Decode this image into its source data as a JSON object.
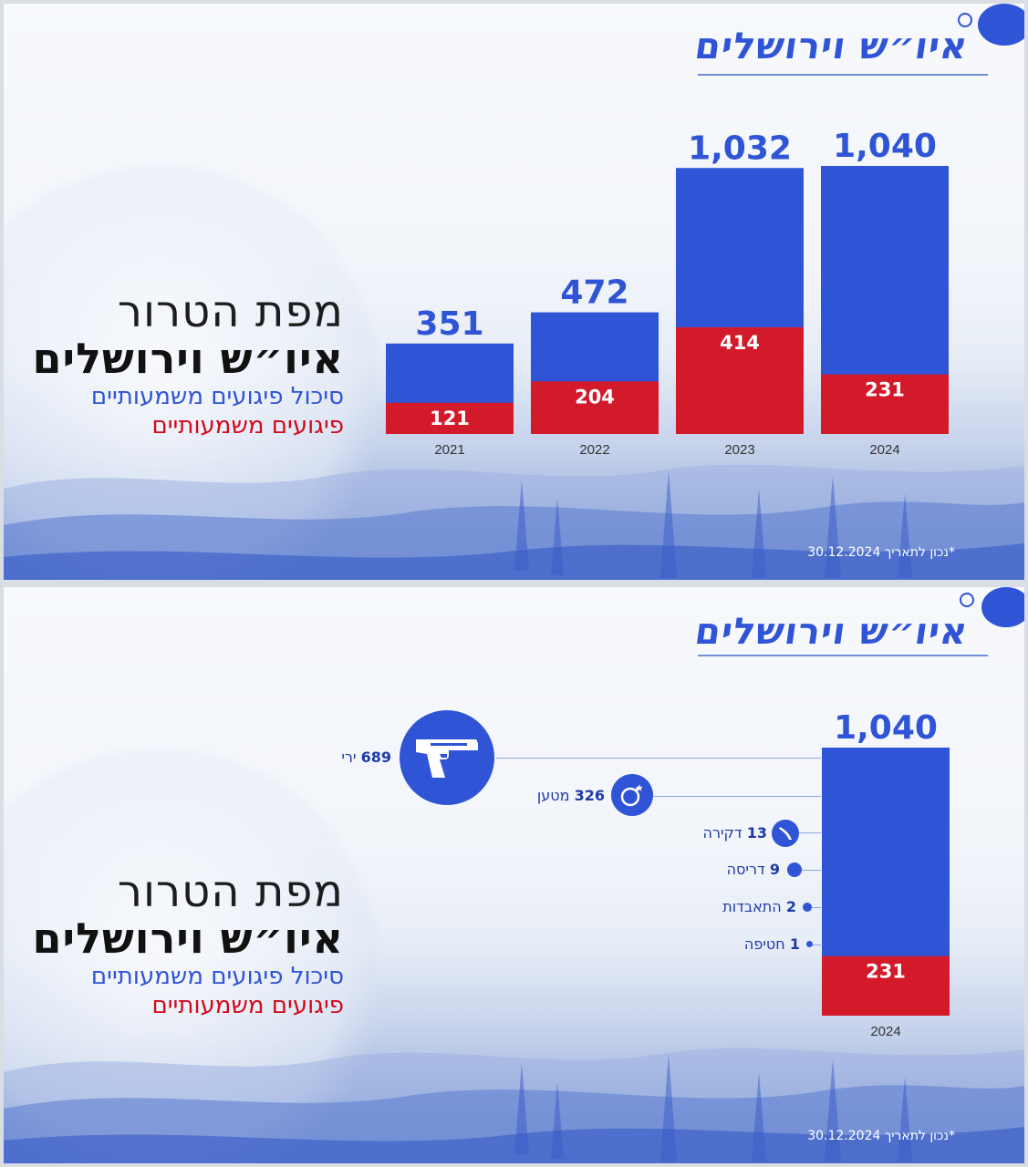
{
  "header": {
    "title": "איו״ש וירושלים"
  },
  "side_title": {
    "line1": "מפת הטרור",
    "line2": "איו״ש וירושלים",
    "line3": "סיכול פיגועים משמעותיים",
    "line4": "פיגועים משמעותיים"
  },
  "footnote": "*נכון לתאריך 30.12.2024",
  "colors": {
    "blue": "#2f54d6",
    "red": "#d21a2a"
  },
  "chart_data": [
    {
      "type": "bar",
      "categories": [
        "2021",
        "2022",
        "2023",
        "2024"
      ],
      "series": [
        {
          "name": "סיכול פיגועים משמעותיים",
          "values": [
            351,
            472,
            1032,
            1040
          ],
          "labels": [
            "351",
            "472",
            "1,032",
            "1,040"
          ]
        },
        {
          "name": "פיגועים משמעותיים",
          "values": [
            121,
            204,
            414,
            231
          ],
          "labels": [
            "121",
            "204",
            "414",
            "231"
          ]
        }
      ],
      "ylim": [
        0,
        1100
      ]
    },
    {
      "type": "bar",
      "categories": [
        "2024"
      ],
      "series": [
        {
          "name": "סיכול פיגועים משמעותיים",
          "values": [
            1040
          ],
          "labels": [
            "1,040"
          ]
        },
        {
          "name": "פיגועים משמעותיים",
          "values": [
            231
          ],
          "labels": [
            "231"
          ]
        }
      ],
      "breakdown": [
        {
          "count": "689",
          "label": "ירי",
          "icon": "pistol-icon"
        },
        {
          "count": "326",
          "label": "מטען",
          "icon": "bomb-icon"
        },
        {
          "count": "13",
          "label": "דקירה",
          "icon": "knife-icon"
        },
        {
          "count": "9",
          "label": "דריסה",
          "icon": "dot-icon"
        },
        {
          "count": "2",
          "label": "התאבדות",
          "icon": "dot-icon"
        },
        {
          "count": "1",
          "label": "חטיפה",
          "icon": "dot-icon"
        }
      ]
    }
  ]
}
